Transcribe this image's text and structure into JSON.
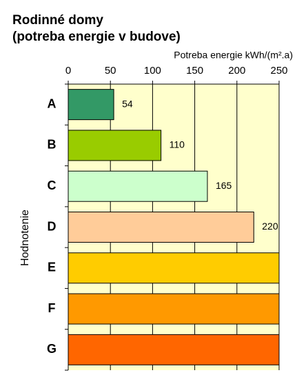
{
  "chart_data": {
    "type": "barh",
    "title": "Rodinné domy",
    "subtitle": "(potreba energie v budove)",
    "x_label": "Potreba energie kWh/(m².a)",
    "y_label": "Hodnotenie",
    "categories": [
      "A",
      "B",
      "C",
      "D",
      "E",
      "F",
      "G"
    ],
    "values": [
      54,
      110,
      165,
      220,
      250,
      250,
      250
    ],
    "colors": [
      "#339966",
      "#99cc00",
      "#ccffcc",
      "#ffcc99",
      "#ffcc00",
      "#ff9900",
      "#ff6600"
    ],
    "xlim": [
      0,
      250
    ],
    "xticks": [
      0,
      50,
      100,
      150,
      200,
      250
    ],
    "grid": true,
    "plot_background": "#ffffcc"
  }
}
